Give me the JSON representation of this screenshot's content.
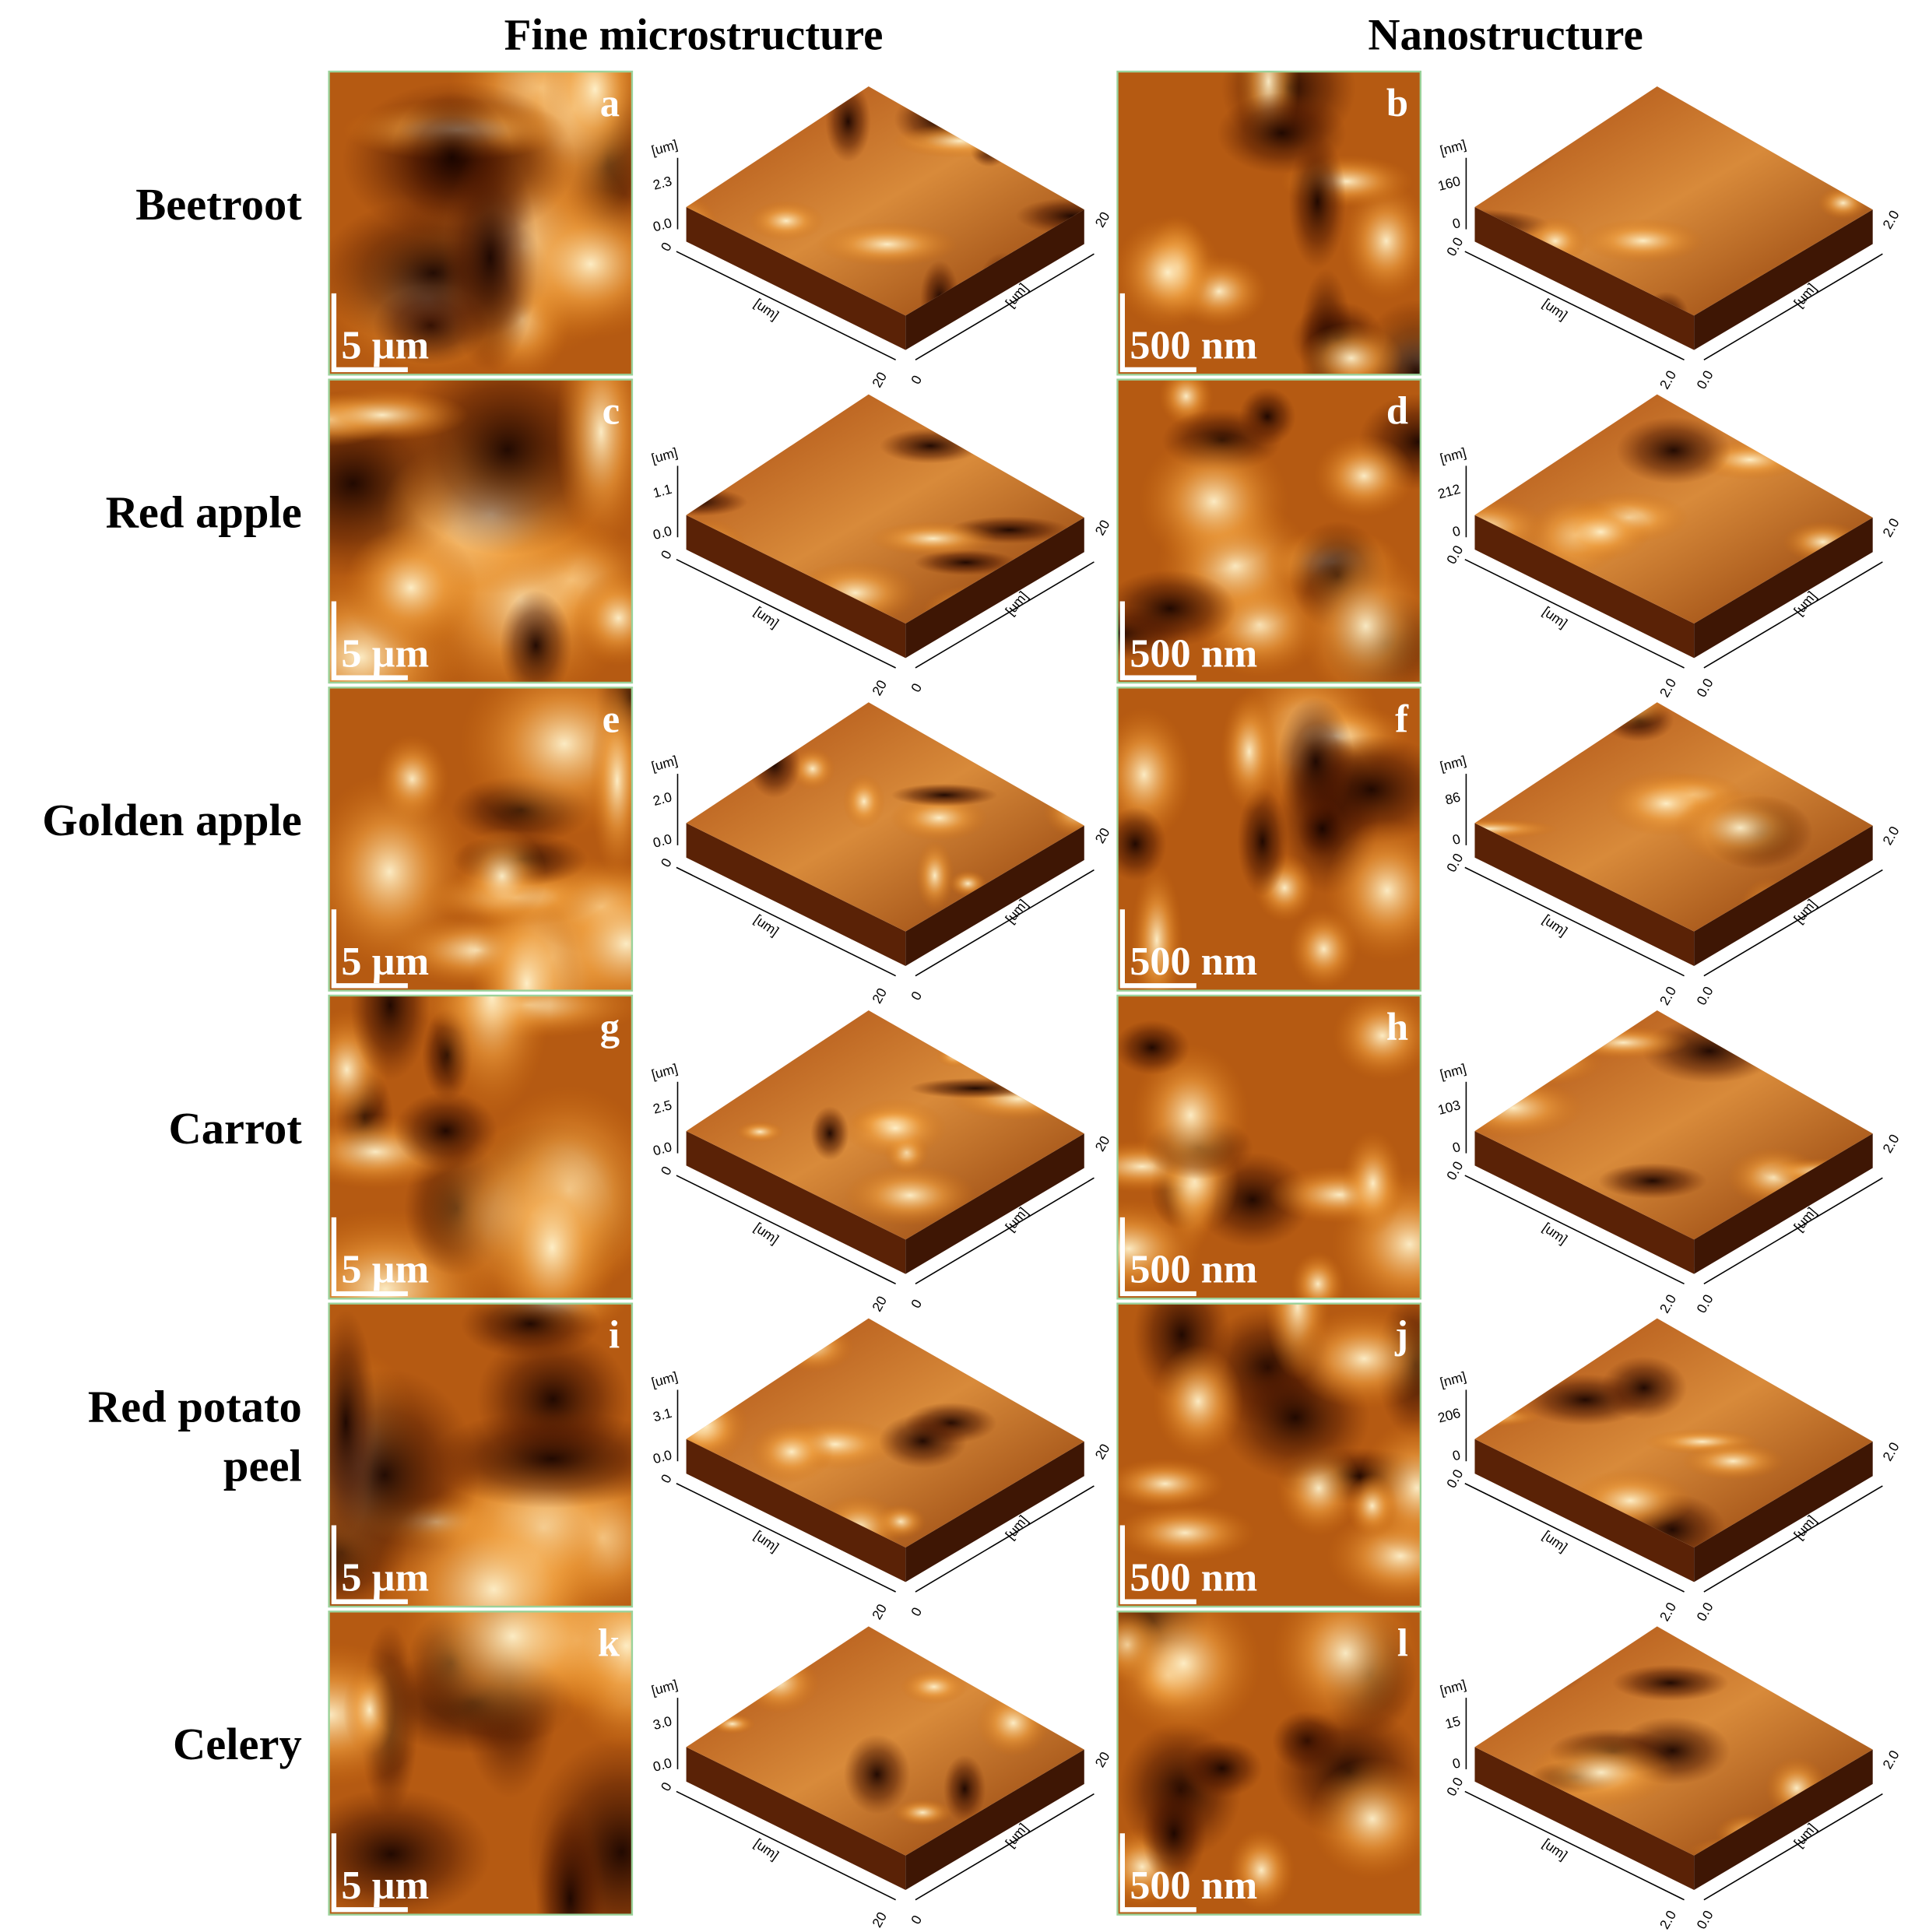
{
  "columns": [
    "Fine microstructure",
    "Nanostructure"
  ],
  "rows": [
    {
      "label": [
        "Beetroot"
      ],
      "panels": [
        {
          "letter": "a",
          "scale_bar": "5 µm",
          "plot3d": {
            "z_unit": "[um]",
            "z_max": "2.3",
            "z_min": "0.0",
            "origin": "0",
            "x_unit": "[um]",
            "x_end": "20",
            "y_start": "0",
            "y_unit": "[um]",
            "y_end": "20"
          }
        },
        {
          "letter": "b",
          "scale_bar": "500 nm",
          "plot3d": {
            "z_unit": "[nm]",
            "z_max": "160",
            "z_min": "0",
            "origin": "0.0",
            "x_unit": "[um]",
            "x_end": "2.0",
            "y_start": "0.0",
            "y_unit": "[um]",
            "y_end": "2.0"
          }
        }
      ]
    },
    {
      "label": [
        "Red apple"
      ],
      "panels": [
        {
          "letter": "c",
          "scale_bar": "5 µm",
          "plot3d": {
            "z_unit": "[um]",
            "z_max": "1.1",
            "z_min": "0.0",
            "origin": "0",
            "x_unit": "[um]",
            "x_end": "20",
            "y_start": "0",
            "y_unit": "[um]",
            "y_end": "20"
          }
        },
        {
          "letter": "d",
          "scale_bar": "500 nm",
          "plot3d": {
            "z_unit": "[nm]",
            "z_max": "212",
            "z_min": "0",
            "origin": "0.0",
            "x_unit": "[um]",
            "x_end": "2.0",
            "y_start": "0.0",
            "y_unit": "[um]",
            "y_end": "2.0"
          }
        }
      ]
    },
    {
      "label": [
        "Golden apple"
      ],
      "panels": [
        {
          "letter": "e",
          "scale_bar": "5 µm",
          "plot3d": {
            "z_unit": "[um]",
            "z_max": "2.0",
            "z_min": "0.0",
            "origin": "0",
            "x_unit": "[um]",
            "x_end": "20",
            "y_start": "0",
            "y_unit": "[um]",
            "y_end": "20"
          }
        },
        {
          "letter": "f",
          "scale_bar": "500 nm",
          "plot3d": {
            "z_unit": "[nm]",
            "z_max": "86",
            "z_min": "0",
            "origin": "0.0",
            "x_unit": "[um]",
            "x_end": "2.0",
            "y_start": "0.0",
            "y_unit": "[um]",
            "y_end": "2.0"
          }
        }
      ]
    },
    {
      "label": [
        "Carrot"
      ],
      "panels": [
        {
          "letter": "g",
          "scale_bar": "5 µm",
          "plot3d": {
            "z_unit": "[um]",
            "z_max": "2.5",
            "z_min": "0.0",
            "origin": "0",
            "x_unit": "[um]",
            "x_end": "20",
            "y_start": "0",
            "y_unit": "[um]",
            "y_end": "20"
          }
        },
        {
          "letter": "h",
          "scale_bar": "500 nm",
          "plot3d": {
            "z_unit": "[nm]",
            "z_max": "103",
            "z_min": "0",
            "origin": "0.0",
            "x_unit": "[um]",
            "x_end": "2.0",
            "y_start": "0.0",
            "y_unit": "[um]",
            "y_end": "2.0"
          }
        }
      ]
    },
    {
      "label": [
        "Red potato",
        "peel"
      ],
      "panels": [
        {
          "letter": "i",
          "scale_bar": "5 µm",
          "plot3d": {
            "z_unit": "[um]",
            "z_max": "3.1",
            "z_min": "0.0",
            "origin": "0",
            "x_unit": "[um]",
            "x_end": "20",
            "y_start": "0",
            "y_unit": "[um]",
            "y_end": "20"
          }
        },
        {
          "letter": "j",
          "scale_bar": "500 nm",
          "plot3d": {
            "z_unit": "[nm]",
            "z_max": "206",
            "z_min": "0",
            "origin": "0.0",
            "x_unit": "[um]",
            "x_end": "2.0",
            "y_start": "0.0",
            "y_unit": "[um]",
            "y_end": "2.0"
          }
        }
      ]
    },
    {
      "label": [
        "Celery"
      ],
      "panels": [
        {
          "letter": "k",
          "scale_bar": "5 µm",
          "plot3d": {
            "z_unit": "[um]",
            "z_max": "3.0",
            "z_min": "0.0",
            "origin": "0",
            "x_unit": "[um]",
            "x_end": "20",
            "y_start": "0",
            "y_unit": "[um]",
            "y_end": "20"
          }
        },
        {
          "letter": "l",
          "scale_bar": "500 nm",
          "plot3d": {
            "z_unit": "[nm]",
            "z_max": "15",
            "z_min": "0",
            "origin": "0.0",
            "x_unit": "[um]",
            "x_end": "2.0",
            "y_start": "0.0",
            "y_unit": "[um]",
            "y_end": "2.0"
          }
        }
      ]
    }
  ]
}
